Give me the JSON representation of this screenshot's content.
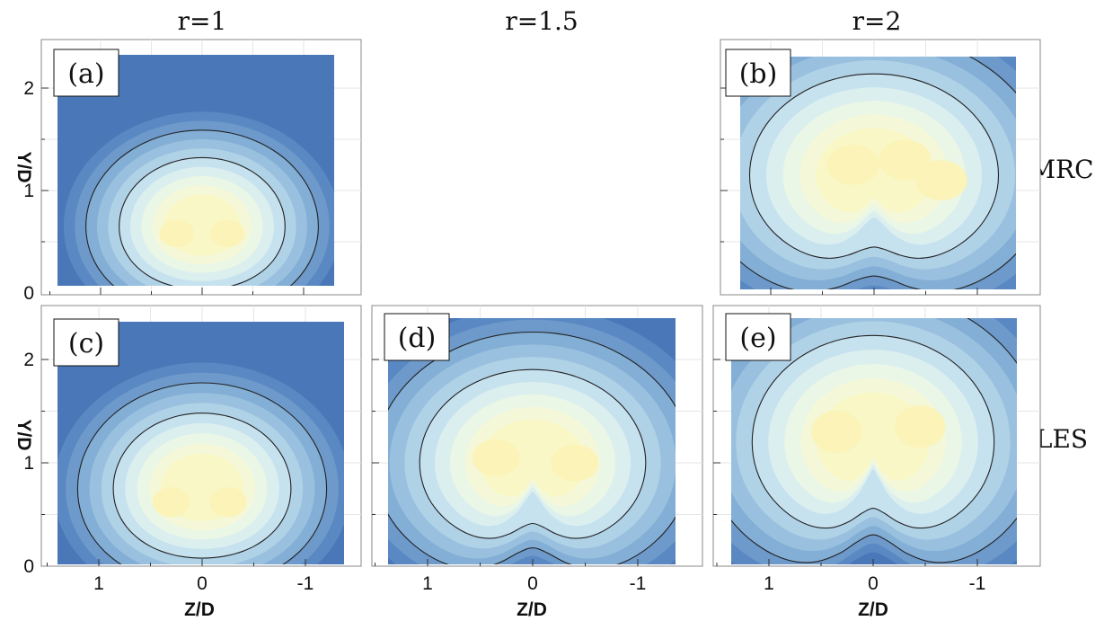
{
  "columns": [
    "r=1",
    "r=1.5",
    "r=2"
  ],
  "rows": [
    "MRC",
    "LES"
  ],
  "colors": {
    "background": "#4a77b8",
    "levels": [
      "#4a77b8",
      "#5a88c2",
      "#6d9acb",
      "#83aed5",
      "#99c0de",
      "#b0d2e7",
      "#c7e2ef",
      "#dcefef",
      "#eaf6e6",
      "#f4f8d8",
      "#faf7c6"
    ],
    "contour_line": "#222222"
  },
  "chart_data": [
    {
      "type": "heatmap",
      "panel": "(a)",
      "r": "1",
      "method": "MRC",
      "xlabel": "",
      "ylabel": "Y/D",
      "xlim": [
        1.5,
        -1.4
      ],
      "ylim": [
        0,
        2.4
      ],
      "x_ticks": [],
      "y_ticks": [
        "0",
        "1",
        "2"
      ],
      "field": {
        "center": [
          0.0,
          0.65
        ],
        "width": 0.95,
        "height": 0.78,
        "dip": 0.0,
        "peaks": [
          [
            0.25,
            0.58
          ],
          [
            -0.25,
            0.58
          ]
        ]
      }
    },
    {
      "type": "heatmap",
      "panel": "(b)",
      "r": "2",
      "method": "MRC",
      "xlabel": "",
      "ylabel": "",
      "xlim": [
        1.5,
        -1.4
      ],
      "ylim": [
        0,
        2.4
      ],
      "x_ticks": [],
      "y_ticks": [],
      "field": {
        "center": [
          0.0,
          1.15
        ],
        "width": 1.4,
        "height": 1.15,
        "dip": 0.35,
        "peaks": [
          [
            0.2,
            1.25
          ],
          [
            -0.3,
            1.3
          ],
          [
            -0.65,
            1.1
          ]
        ]
      }
    },
    {
      "type": "heatmap",
      "panel": "(c)",
      "r": "1",
      "method": "LES",
      "xlabel": "Z/D",
      "ylabel": "Y/D",
      "xlim": [
        1.5,
        -1.4
      ],
      "ylim": [
        0,
        2.4
      ],
      "x_ticks": [
        "1",
        "0",
        "-1"
      ],
      "y_ticks": [
        "0",
        "1",
        "2"
      ],
      "field": {
        "center": [
          0.0,
          0.75
        ],
        "width": 1.0,
        "height": 0.85,
        "dip": 0.0,
        "peaks": [
          [
            0.3,
            0.62
          ],
          [
            -0.25,
            0.62
          ]
        ]
      }
    },
    {
      "type": "heatmap",
      "panel": "(d)",
      "r": "1.5",
      "method": "LES",
      "xlabel": "Z/D",
      "ylabel": "",
      "xlim": [
        1.5,
        -1.4
      ],
      "ylim": [
        0,
        2.4
      ],
      "x_ticks": [
        "1",
        "0",
        "-1"
      ],
      "y_ticks": [],
      "field": {
        "center": [
          0.0,
          1.0
        ],
        "width": 1.25,
        "height": 1.05,
        "dip": 0.45,
        "peaks": [
          [
            0.35,
            1.05
          ],
          [
            -0.4,
            1.0
          ]
        ]
      }
    },
    {
      "type": "heatmap",
      "panel": "(e)",
      "r": "2",
      "method": "LES",
      "xlabel": "Z/D",
      "ylabel": "",
      "xlim": [
        1.5,
        -1.4
      ],
      "ylim": [
        0,
        2.4
      ],
      "x_ticks": [
        "1",
        "0",
        "-1"
      ],
      "y_ticks": [],
      "field": {
        "center": [
          0.0,
          1.2
        ],
        "width": 1.35,
        "height": 1.2,
        "dip": 0.5,
        "peaks": [
          [
            0.35,
            1.3
          ],
          [
            -0.45,
            1.35
          ]
        ]
      }
    }
  ]
}
